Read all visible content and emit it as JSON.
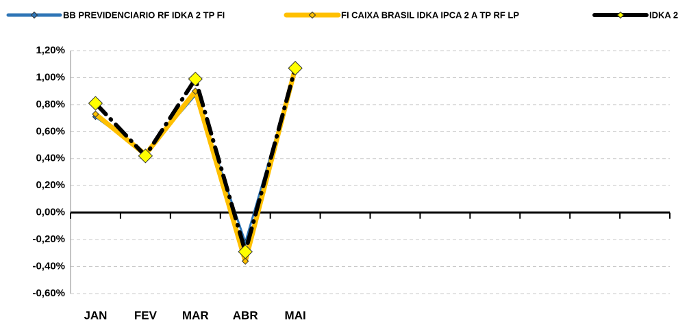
{
  "chart_data": {
    "type": "line",
    "categories": [
      "JAN",
      "FEV",
      "MAR",
      "ABR",
      "MAI",
      null,
      null,
      null,
      null,
      null,
      null,
      null
    ],
    "series": [
      {
        "name": "BB PREVIDENCIARIO RF IDKA 2 TP FI",
        "color": "#2e75b6",
        "marker_color": "#2e75b6",
        "values": [
          0.71,
          0.44,
          0.87,
          -0.22,
          1.05,
          null,
          null,
          null,
          null,
          null,
          null,
          null
        ]
      },
      {
        "name": "FI CAIXA BRASIL IDKA IPCA 2 A TP RF LP",
        "color": "#ffc000",
        "marker_color": "#ffc000",
        "values": [
          0.73,
          0.43,
          0.9,
          -0.36,
          1.07,
          null,
          null,
          null,
          null,
          null,
          null,
          null
        ]
      },
      {
        "name": "IDKA 2",
        "color": "#000000",
        "marker_color": "#ffff00",
        "values": [
          0.81,
          0.42,
          0.99,
          -0.29,
          1.07,
          null,
          null,
          null,
          null,
          null,
          null,
          null
        ]
      }
    ],
    "ylim": [
      -0.6,
      1.2
    ],
    "yticks": [
      {
        "value": 1.2,
        "label": "1,20%"
      },
      {
        "value": 1.0,
        "label": "1,00%"
      },
      {
        "value": 0.8,
        "label": "0,80%"
      },
      {
        "value": 0.6,
        "label": "0,60%"
      },
      {
        "value": 0.4,
        "label": "0,40%"
      },
      {
        "value": 0.2,
        "label": "0,20%"
      },
      {
        "value": 0,
        "label": "0,00%"
      },
      {
        "value": -0.2,
        "label": "-0,20%"
      },
      {
        "value": -0.4,
        "label": "-0,40%"
      },
      {
        "value": -0.6,
        "label": "-0,60%"
      }
    ],
    "grid": true,
    "legend": "top"
  }
}
